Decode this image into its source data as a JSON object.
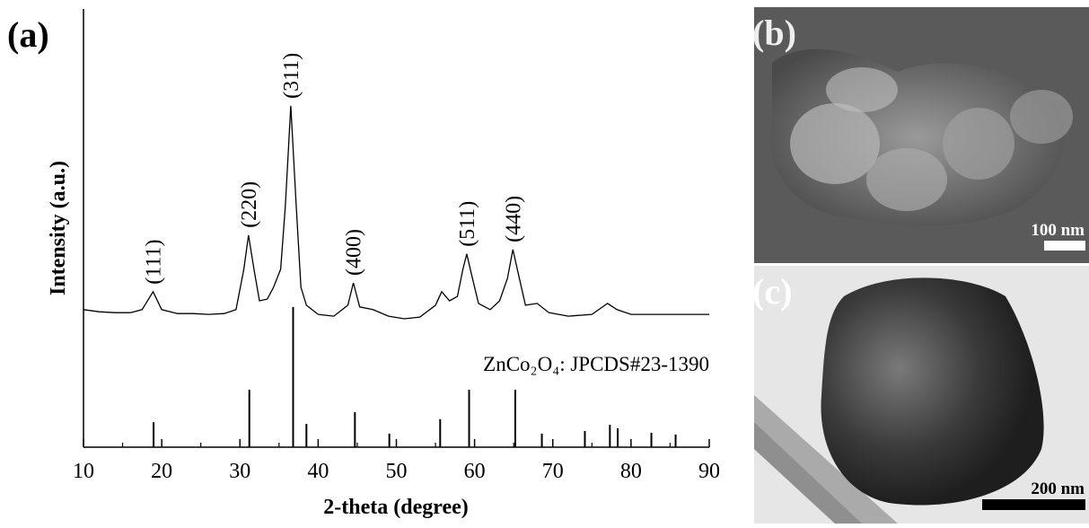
{
  "panel_labels": [
    "(a)",
    "(b)",
    "(c)"
  ],
  "scale_bars": [
    "100 nm",
    "200 nm"
  ],
  "chart_data": {
    "type": "xrd",
    "xlabel": "2-theta (degree)",
    "ylabel": "Intensity (a.u.)",
    "xlim": [
      10,
      90
    ],
    "xticks": [
      10,
      20,
      30,
      40,
      50,
      60,
      70,
      80,
      90
    ],
    "xminorticks": [
      15,
      25,
      35,
      45,
      55,
      65,
      75,
      85
    ],
    "ylim": [
      0,
      100
    ],
    "pattern": {
      "color": "#000000",
      "x": [
        10,
        12,
        14,
        16,
        17.5,
        18.9,
        20,
        22,
        24,
        26,
        28,
        29.5,
        30.5,
        31.1,
        31.8,
        32.5,
        33.5,
        34.3,
        35.2,
        35.8,
        36.5,
        37.2,
        37.8,
        38.5,
        40,
        42,
        43.8,
        44.5,
        45.3,
        47,
        49,
        51,
        53,
        55,
        55.8,
        56.8,
        57.8,
        58.5,
        59.0,
        59.6,
        60.5,
        62,
        63.2,
        64.2,
        64.9,
        65.6,
        66.5,
        68,
        69.5,
        72,
        75,
        77,
        78.2,
        80,
        84,
        88,
        90
      ],
      "values": [
        31.4,
        30.9,
        30.7,
        30.7,
        31.4,
        35.5,
        31.4,
        30.5,
        30.5,
        30.3,
        30.5,
        31.4,
        40.6,
        48.4,
        40.6,
        33.4,
        33.8,
        36.5,
        40.6,
        54.9,
        77.9,
        54.9,
        36.5,
        32.4,
        30.3,
        29.9,
        32.4,
        37.5,
        32.0,
        31.4,
        29.9,
        29.3,
        29.7,
        32.4,
        35.5,
        33.4,
        34.4,
        40.6,
        44.1,
        39.5,
        32.8,
        31.4,
        33.4,
        38.5,
        45.1,
        39.5,
        32.4,
        32.8,
        30.7,
        29.9,
        30.3,
        32.8,
        31.4,
        30.3,
        30.3,
        30.3,
        30.3
      ]
    },
    "peaks": [
      {
        "label": "(111)",
        "x": 18.9
      },
      {
        "label": "(220)",
        "x": 31.1
      },
      {
        "label": "(311)",
        "x": 36.5
      },
      {
        "label": "(400)",
        "x": 44.5
      },
      {
        "label": "(511)",
        "x": 59.0
      },
      {
        "label": "(440)",
        "x": 64.9
      }
    ],
    "reference": {
      "name": "ZnCo₂O₄: JPCDS#23-1390",
      "color": "#000000",
      "x": [
        18.96,
        31.2,
        36.8,
        38.5,
        44.7,
        49.1,
        55.6,
        59.3,
        65.2,
        68.6,
        74.1,
        77.3,
        78.3,
        82.6,
        85.7
      ],
      "values": [
        5.7,
        13.1,
        32,
        5.3,
        8,
        3.1,
        6.4,
        13.1,
        13.1,
        3.1,
        3.7,
        5.1,
        4.3,
        3.3,
        2.9
      ]
    }
  }
}
